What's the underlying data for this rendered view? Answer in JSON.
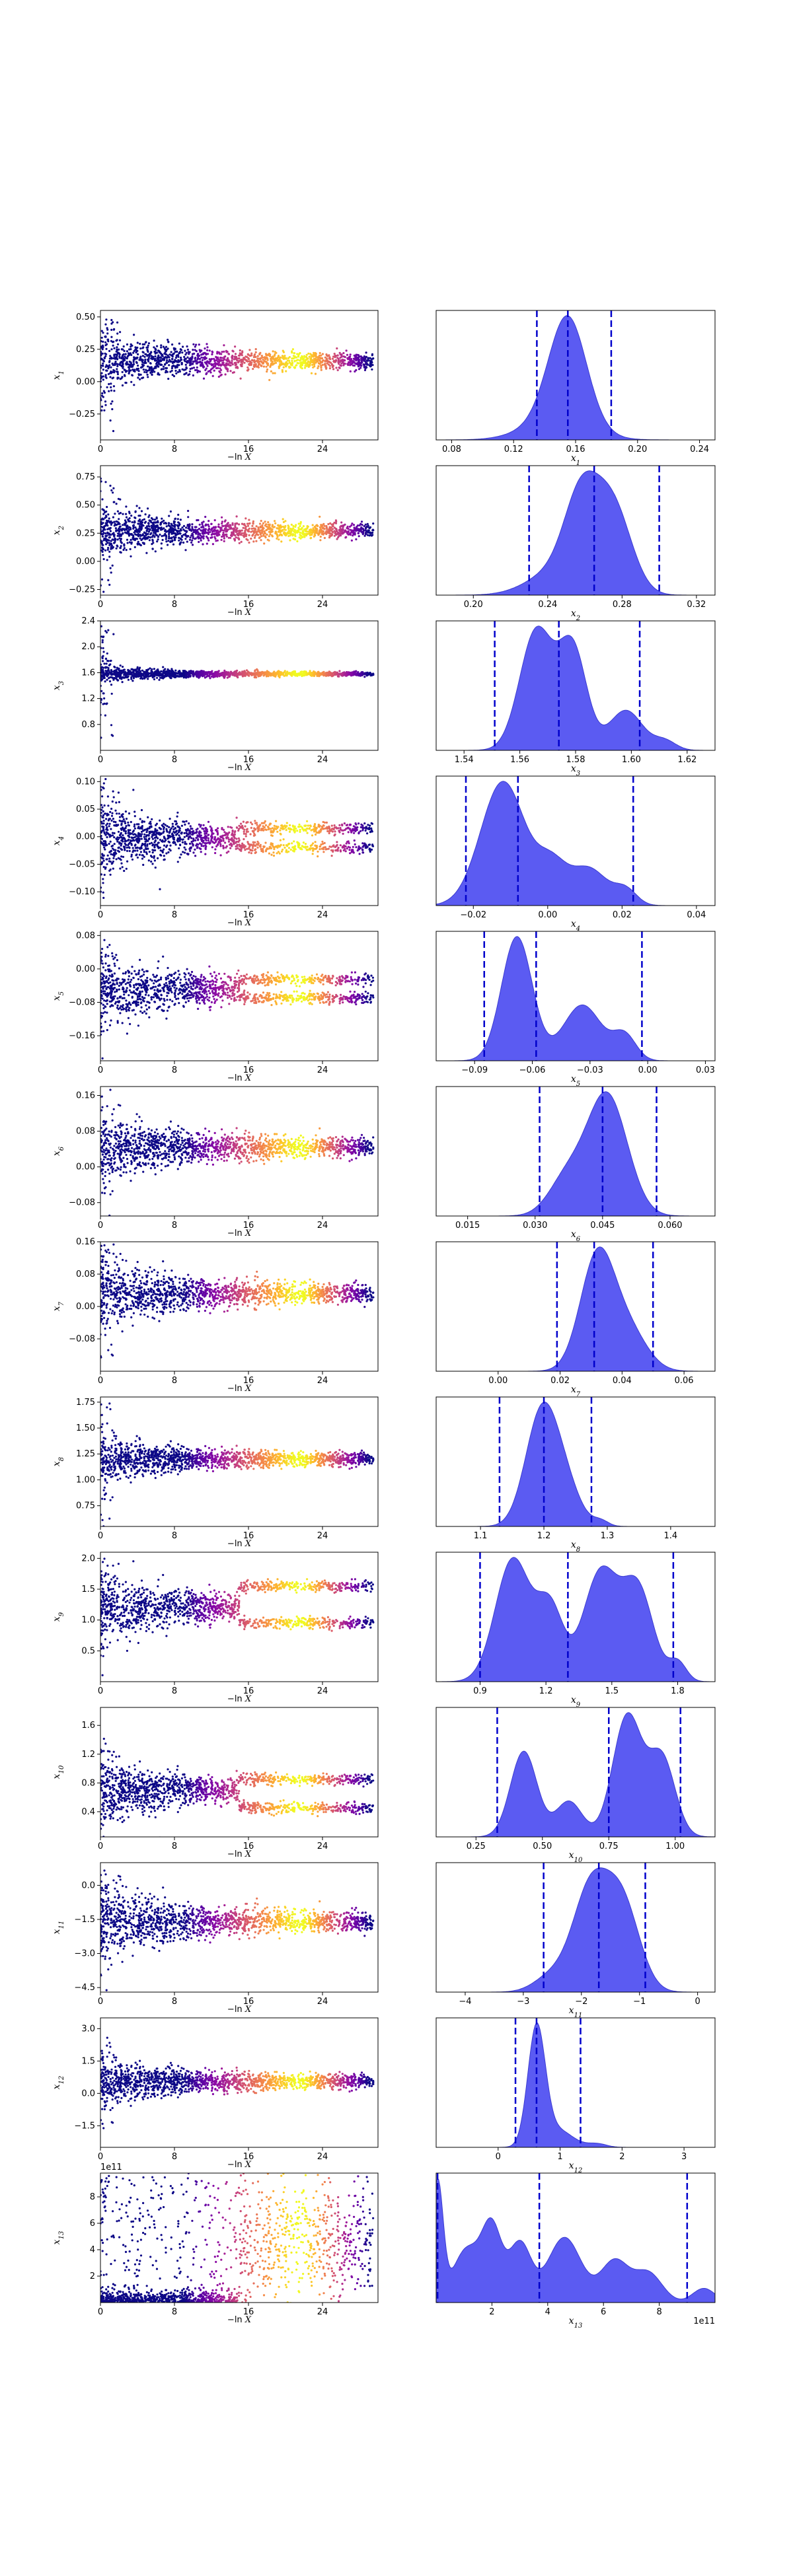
{
  "figure": {
    "layout": "13 rows x 2 columns (left: scatter of parameter vs -ln X, right: posterior density with dashed quantile lines)"
  },
  "colors": {
    "density_fill": "#5b5bf2",
    "density_edge": "#3c3cd0",
    "quantile_line": "#0000cc",
    "scatter_low": "#0d0887",
    "scatter_mid": "#cc4778",
    "scatter_high": "#f0f921"
  },
  "chart_data": [
    {
      "type": "scatter",
      "xlabel": "−ln X",
      "ylabel": "x",
      "ysub": "1",
      "xlim": [
        0,
        30
      ],
      "xticks": [
        0,
        8,
        16,
        24
      ],
      "ylim": [
        -0.45,
        0.55
      ],
      "yticks": [
        -0.25,
        0.0,
        0.25,
        0.5
      ],
      "ytick_labels": [
        "−0.25",
        "0.00",
        "0.25",
        "0.50"
      ],
      "center": 0.16,
      "spread": 0.12,
      "outlier_scale": 0.3
    },
    {
      "type": "area",
      "xlabel": "x",
      "xsub": "1",
      "xlim": [
        0.07,
        0.25
      ],
      "xticks": [
        0.08,
        0.12,
        0.16,
        0.2,
        0.24
      ],
      "xtick_labels": [
        "0.08",
        "0.12",
        "0.16",
        "0.20",
        "0.24"
      ],
      "quantiles": [
        0.135,
        0.155,
        0.183
      ],
      "peaks": [
        {
          "mu": 0.155,
          "sigma": 0.012,
          "amp": 1.0
        },
        {
          "mu": 0.148,
          "sigma": 0.02,
          "amp": 0.2
        }
      ]
    },
    {
      "type": "scatter",
      "xlabel": "−ln X",
      "ylabel": "x",
      "ysub": "2",
      "xlim": [
        0,
        30
      ],
      "xticks": [
        0,
        8,
        16,
        24
      ],
      "ylim": [
        -0.3,
        0.85
      ],
      "yticks": [
        -0.25,
        0.0,
        0.25,
        0.5,
        0.75
      ],
      "ytick_labels": [
        "−0.25",
        "0.00",
        "0.25",
        "0.50",
        "0.75"
      ],
      "center": 0.27,
      "spread": 0.12,
      "outlier_scale": 0.25
    },
    {
      "type": "area",
      "xlabel": "x",
      "xsub": "2",
      "xlim": [
        0.18,
        0.33
      ],
      "xticks": [
        0.2,
        0.24,
        0.28,
        0.32
      ],
      "xtick_labels": [
        "0.20",
        "0.24",
        "0.28",
        "0.32"
      ],
      "quantiles": [
        0.23,
        0.265,
        0.3
      ],
      "peaks": [
        {
          "mu": 0.258,
          "sigma": 0.009,
          "amp": 0.85
        },
        {
          "mu": 0.275,
          "sigma": 0.01,
          "amp": 0.9
        },
        {
          "mu": 0.245,
          "sigma": 0.015,
          "amp": 0.25
        }
      ]
    },
    {
      "type": "scatter",
      "xlabel": "−ln X",
      "ylabel": "x",
      "ysub": "3",
      "xlim": [
        0,
        30
      ],
      "xticks": [
        0,
        8,
        16,
        24
      ],
      "ylim": [
        0.4,
        2.4
      ],
      "yticks": [
        0.8,
        1.2,
        1.6,
        2.0,
        2.4
      ],
      "ytick_labels": [
        "0.8",
        "1.2",
        "1.6",
        "2.0",
        "2.4"
      ],
      "center": 1.58,
      "spread": 0.06,
      "outlier_scale": 0.5
    },
    {
      "type": "area",
      "xlabel": "x",
      "xsub": "3",
      "xlim": [
        1.53,
        1.63
      ],
      "xticks": [
        1.54,
        1.56,
        1.58,
        1.6,
        1.62
      ],
      "xtick_labels": [
        "1.54",
        "1.56",
        "1.58",
        "1.60",
        "1.62"
      ],
      "quantiles": [
        1.551,
        1.574,
        1.603
      ],
      "peaks": [
        {
          "mu": 1.566,
          "sigma": 0.006,
          "amp": 0.9
        },
        {
          "mu": 1.579,
          "sigma": 0.005,
          "amp": 0.75
        },
        {
          "mu": 1.598,
          "sigma": 0.006,
          "amp": 0.3
        },
        {
          "mu": 1.612,
          "sigma": 0.004,
          "amp": 0.07
        }
      ]
    },
    {
      "type": "scatter",
      "xlabel": "−ln X",
      "ylabel": "x",
      "ysub": "4",
      "xlim": [
        0,
        30
      ],
      "xticks": [
        0,
        8,
        16,
        24
      ],
      "ylim": [
        -0.125,
        0.11
      ],
      "yticks": [
        -0.1,
        -0.05,
        0.0,
        0.05,
        0.1
      ],
      "ytick_labels": [
        "−0.10",
        "−0.05",
        "0.00",
        "0.05",
        "0.10"
      ],
      "center": -0.003,
      "spread": 0.035,
      "outlier_scale": 0.05,
      "bands": [
        -0.02,
        0.015
      ]
    },
    {
      "type": "area",
      "xlabel": "x",
      "xsub": "4",
      "xlim": [
        -0.03,
        0.045
      ],
      "xticks": [
        -0.02,
        0.0,
        0.02,
        0.04
      ],
      "xtick_labels": [
        "−0.02",
        "0.00",
        "0.02",
        "0.04"
      ],
      "quantiles": [
        -0.022,
        -0.008,
        0.023
      ],
      "peaks": [
        {
          "mu": -0.012,
          "sigma": 0.006,
          "amp": 1.0
        },
        {
          "mu": 0.001,
          "sigma": 0.004,
          "amp": 0.3
        },
        {
          "mu": 0.011,
          "sigma": 0.005,
          "amp": 0.3
        },
        {
          "mu": 0.021,
          "sigma": 0.003,
          "amp": 0.12
        }
      ]
    },
    {
      "type": "scatter",
      "xlabel": "−ln X",
      "ylabel": "x",
      "ysub": "5",
      "xlim": [
        0,
        30
      ],
      "xticks": [
        0,
        8,
        16,
        24
      ],
      "ylim": [
        -0.22,
        0.09
      ],
      "yticks": [
        -0.16,
        -0.08,
        0.0,
        0.08
      ],
      "ytick_labels": [
        "−0.16",
        "−0.08",
        "0.00",
        "0.08"
      ],
      "center": -0.05,
      "spread": 0.045,
      "outlier_scale": 0.06,
      "bands": [
        -0.07,
        -0.025
      ]
    },
    {
      "type": "area",
      "xlabel": "x",
      "xsub": "5",
      "xlim": [
        -0.11,
        0.035
      ],
      "xticks": [
        -0.09,
        -0.06,
        -0.03,
        0.0,
        0.03
      ],
      "xtick_labels": [
        "−0.09",
        "−0.06",
        "−0.03",
        "0.00",
        "0.03"
      ],
      "quantiles": [
        -0.085,
        -0.058,
        -0.003
      ],
      "peaks": [
        {
          "mu": -0.068,
          "sigma": 0.008,
          "amp": 1.0
        },
        {
          "mu": -0.034,
          "sigma": 0.01,
          "amp": 0.45
        },
        {
          "mu": -0.012,
          "sigma": 0.006,
          "amp": 0.2
        }
      ]
    },
    {
      "type": "scatter",
      "xlabel": "−ln X",
      "ylabel": "x",
      "ysub": "6",
      "xlim": [
        0,
        30
      ],
      "xticks": [
        0,
        8,
        16,
        24
      ],
      "ylim": [
        -0.11,
        0.18
      ],
      "yticks": [
        -0.08,
        0.0,
        0.08,
        0.16
      ],
      "ytick_labels": [
        "−0.08",
        "0.00",
        "0.08",
        "0.16"
      ],
      "center": 0.044,
      "spread": 0.04,
      "outlier_scale": 0.08
    },
    {
      "type": "area",
      "xlabel": "x",
      "xsub": "6",
      "xlim": [
        0.008,
        0.07
      ],
      "xticks": [
        0.015,
        0.03,
        0.045,
        0.06
      ],
      "xtick_labels": [
        "0.015",
        "0.030",
        "0.045",
        "0.060"
      ],
      "quantiles": [
        0.031,
        0.045,
        0.057
      ],
      "peaks": [
        {
          "mu": 0.046,
          "sigma": 0.0045,
          "amp": 1.0
        },
        {
          "mu": 0.037,
          "sigma": 0.004,
          "amp": 0.3
        }
      ]
    },
    {
      "type": "scatter",
      "xlabel": "−ln X",
      "ylabel": "x",
      "ysub": "7",
      "xlim": [
        0,
        30
      ],
      "xticks": [
        0,
        8,
        16,
        24
      ],
      "ylim": [
        -0.16,
        0.16
      ],
      "yticks": [
        -0.08,
        0.0,
        0.08,
        0.16
      ],
      "ytick_labels": [
        "−0.08",
        "0.00",
        "0.08",
        "0.16"
      ],
      "center": 0.032,
      "spread": 0.045,
      "outlier_scale": 0.08
    },
    {
      "type": "area",
      "xlabel": "x",
      "xsub": "7",
      "xlim": [
        -0.02,
        0.07
      ],
      "xticks": [
        0.0,
        0.02,
        0.04,
        0.06
      ],
      "xtick_labels": [
        "0.00",
        "0.02",
        "0.04",
        "0.06"
      ],
      "quantiles": [
        0.019,
        0.031,
        0.05
      ],
      "peaks": [
        {
          "mu": 0.032,
          "sigma": 0.0055,
          "amp": 1.0
        },
        {
          "mu": 0.042,
          "sigma": 0.006,
          "amp": 0.35
        }
      ]
    },
    {
      "type": "scatter",
      "xlabel": "−ln X",
      "ylabel": "x",
      "ysub": "8",
      "xlim": [
        0,
        30
      ],
      "xticks": [
        0,
        8,
        16,
        24
      ],
      "ylim": [
        0.55,
        1.8
      ],
      "yticks": [
        0.75,
        1.0,
        1.25,
        1.5,
        1.75
      ],
      "ytick_labels": [
        "0.75",
        "1.00",
        "1.25",
        "1.50",
        "1.75"
      ],
      "center": 1.2,
      "spread": 0.12,
      "outlier_scale": 0.3
    },
    {
      "type": "area",
      "xlabel": "x",
      "xsub": "8",
      "xlim": [
        1.03,
        1.47
      ],
      "xticks": [
        1.1,
        1.2,
        1.3,
        1.4
      ],
      "xtick_labels": [
        "1.1",
        "1.2",
        "1.3",
        "1.4"
      ],
      "quantiles": [
        1.13,
        1.2,
        1.275
      ],
      "peaks": [
        {
          "mu": 1.195,
          "sigma": 0.025,
          "amp": 1.0
        },
        {
          "mu": 1.23,
          "sigma": 0.025,
          "amp": 0.4
        },
        {
          "mu": 1.29,
          "sigma": 0.012,
          "amp": 0.05
        }
      ]
    },
    {
      "type": "scatter",
      "xlabel": "−ln X",
      "ylabel": "x",
      "ysub": "9",
      "xlim": [
        0,
        30
      ],
      "xticks": [
        0,
        8,
        16,
        24
      ],
      "ylim": [
        0.0,
        2.1
      ],
      "yticks": [
        0.5,
        1.0,
        1.5,
        2.0
      ],
      "ytick_labels": [
        "0.5",
        "1.0",
        "1.5",
        "2.0"
      ],
      "center": 1.2,
      "spread": 0.3,
      "outlier_scale": 0.4,
      "bands": [
        0.95,
        1.55
      ]
    },
    {
      "type": "area",
      "xlabel": "x",
      "xsub": "9",
      "xlim": [
        0.7,
        1.97
      ],
      "xticks": [
        0.9,
        1.2,
        1.5,
        1.8
      ],
      "xtick_labels": [
        "0.9",
        "1.2",
        "1.5",
        "1.8"
      ],
      "quantiles": [
        0.9,
        1.3,
        1.78
      ],
      "peaks": [
        {
          "mu": 1.05,
          "sigma": 0.08,
          "amp": 0.95
        },
        {
          "mu": 1.22,
          "sigma": 0.06,
          "amp": 0.55
        },
        {
          "mu": 1.45,
          "sigma": 0.08,
          "amp": 0.85
        },
        {
          "mu": 1.62,
          "sigma": 0.07,
          "amp": 0.7
        },
        {
          "mu": 1.8,
          "sigma": 0.04,
          "amp": 0.15
        }
      ]
    },
    {
      "type": "scatter",
      "xlabel": "−ln X",
      "ylabel": "x",
      "ysub": "10",
      "xlim": [
        0,
        30
      ],
      "xticks": [
        0,
        8,
        16,
        24
      ],
      "ylim": [
        0.05,
        1.85
      ],
      "yticks": [
        0.4,
        0.8,
        1.2,
        1.6
      ],
      "ytick_labels": [
        "0.4",
        "0.8",
        "1.2",
        "1.6"
      ],
      "center": 0.7,
      "spread": 0.25,
      "outlier_scale": 0.3,
      "bands": [
        0.45,
        0.85
      ]
    },
    {
      "type": "area",
      "xlabel": "x",
      "xsub": "10",
      "xlim": [
        0.1,
        1.15
      ],
      "xticks": [
        0.25,
        0.5,
        0.75,
        1.0
      ],
      "xtick_labels": [
        "0.25",
        "0.50",
        "0.75",
        "1.00"
      ],
      "quantiles": [
        0.33,
        0.75,
        1.02
      ],
      "peaks": [
        {
          "mu": 0.43,
          "sigma": 0.05,
          "amp": 0.6
        },
        {
          "mu": 0.6,
          "sigma": 0.05,
          "amp": 0.25
        },
        {
          "mu": 0.82,
          "sigma": 0.055,
          "amp": 0.85
        },
        {
          "mu": 0.95,
          "sigma": 0.05,
          "amp": 0.55
        }
      ]
    },
    {
      "type": "scatter",
      "xlabel": "−ln X",
      "ylabel": "x",
      "ysub": "11",
      "xlim": [
        0,
        30
      ],
      "xticks": [
        0,
        8,
        16,
        24
      ],
      "ylim": [
        -4.7,
        1.0
      ],
      "yticks": [
        -4.5,
        -3.0,
        -1.5,
        0.0
      ],
      "ytick_labels": [
        "−4.5",
        "−3.0",
        "−1.5",
        "0.0"
      ],
      "center": -1.6,
      "spread": 0.85,
      "outlier_scale": 1.2
    },
    {
      "type": "area",
      "xlabel": "x",
      "xsub": "11",
      "xlim": [
        -4.5,
        0.3
      ],
      "xticks": [
        -4,
        -3,
        -2,
        -1,
        0
      ],
      "xtick_labels": [
        "−4",
        "−3",
        "−2",
        "−1",
        "0"
      ],
      "quantiles": [
        -2.65,
        -1.7,
        -0.9
      ],
      "peaks": [
        {
          "mu": -1.85,
          "sigma": 0.3,
          "amp": 0.9
        },
        {
          "mu": -1.3,
          "sigma": 0.3,
          "amp": 0.8
        },
        {
          "mu": -2.5,
          "sigma": 0.3,
          "amp": 0.15
        }
      ]
    },
    {
      "type": "scatter",
      "xlabel": "−ln X",
      "ylabel": "x",
      "ysub": "12",
      "xlim": [
        0,
        30
      ],
      "xticks": [
        0,
        8,
        16,
        24
      ],
      "ylim": [
        -2.5,
        3.5
      ],
      "yticks": [
        -1.5,
        0.0,
        1.5,
        3.0
      ],
      "ytick_labels": [
        "−1.5",
        "0.0",
        "1.5",
        "3.0"
      ],
      "center": 0.55,
      "spread": 0.6,
      "outlier_scale": 1.0
    },
    {
      "type": "area",
      "xlabel": "x",
      "xsub": "12",
      "xlim": [
        -1.0,
        3.5
      ],
      "xticks": [
        0,
        1,
        2,
        3
      ],
      "xtick_labels": [
        "0",
        "1",
        "2",
        "3"
      ],
      "quantiles": [
        0.28,
        0.62,
        1.33
      ],
      "peaks": [
        {
          "mu": 0.62,
          "sigma": 0.14,
          "amp": 1.0
        },
        {
          "mu": 0.95,
          "sigma": 0.25,
          "amp": 0.15
        },
        {
          "mu": 1.6,
          "sigma": 0.15,
          "amp": 0.03
        }
      ]
    },
    {
      "type": "scatter",
      "xlabel": "−ln X",
      "ylabel": "x",
      "ysub": "13",
      "xlim": [
        0,
        30
      ],
      "xticks": [
        0,
        8,
        16,
        24
      ],
      "ylim": [
        0.0,
        9.8
      ],
      "yticks": [
        2,
        4,
        6,
        8
      ],
      "ytick_labels": [
        "2",
        "4",
        "6",
        "8"
      ],
      "yexponent": "1e11",
      "center": 4.5,
      "spread": 2.5,
      "outlier_scale": 3.0,
      "uniform": true
    },
    {
      "type": "area",
      "xlabel": "x",
      "xsub": "13",
      "xlim": [
        0.0,
        10.0
      ],
      "xticks": [
        2,
        4,
        6,
        8
      ],
      "xtick_labels": [
        "2",
        "4",
        "6",
        "8"
      ],
      "xexponent": "1e11",
      "quantiles": [
        0.05,
        3.7,
        9.0
      ],
      "peaks": [
        {
          "mu": 0.05,
          "sigma": 0.2,
          "amp": 1.0
        },
        {
          "mu": 1.1,
          "sigma": 0.5,
          "amp": 0.45
        },
        {
          "mu": 2.0,
          "sigma": 0.35,
          "amp": 0.6
        },
        {
          "mu": 3.0,
          "sigma": 0.4,
          "amp": 0.5
        },
        {
          "mu": 4.6,
          "sigma": 0.6,
          "amp": 0.55
        },
        {
          "mu": 6.4,
          "sigma": 0.5,
          "amp": 0.35
        },
        {
          "mu": 7.6,
          "sigma": 0.5,
          "amp": 0.25
        },
        {
          "mu": 9.6,
          "sigma": 0.4,
          "amp": 0.12
        }
      ]
    }
  ]
}
